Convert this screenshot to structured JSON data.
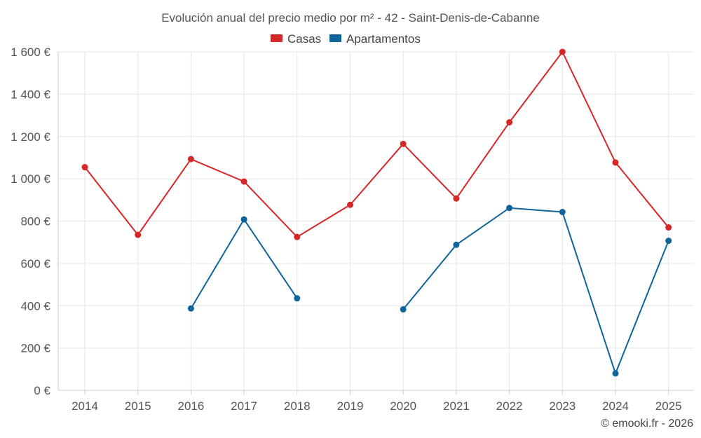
{
  "chart_data": {
    "type": "line",
    "title": "Evolución anual del precio medio por m² - 42 - Saint-Denis-de-Cabanne",
    "categories": [
      "2014",
      "2015",
      "2016",
      "2017",
      "2018",
      "2019",
      "2020",
      "2021",
      "2022",
      "2023",
      "2024",
      "2025"
    ],
    "ylim": [
      0,
      1600
    ],
    "yticks": [
      0,
      200,
      400,
      600,
      800,
      1000,
      1200,
      1400,
      1600
    ],
    "ytick_labels": [
      "0 €",
      "200 €",
      "400 €",
      "600 €",
      "800 €",
      "1 000 €",
      "1 200 €",
      "1 400 €",
      "1 600 €"
    ],
    "xlabel": "",
    "ylabel": "",
    "grid": true,
    "legend_position": "top-center",
    "series": [
      {
        "name": "Casas",
        "color": "#d62728",
        "values": [
          1055,
          735,
          1093,
          987,
          725,
          877,
          1165,
          907,
          1267,
          1600,
          1077,
          770
        ]
      },
      {
        "name": "Apartamentos",
        "color": "#0f6499",
        "values": [
          null,
          null,
          387,
          808,
          435,
          null,
          383,
          688,
          862,
          843,
          80,
          707
        ]
      }
    ],
    "credit": "© emooki.fr - 2026"
  }
}
